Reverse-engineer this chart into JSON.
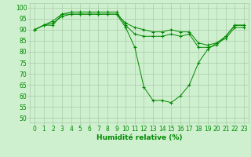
{
  "xlabel": "Humidité relative (%)",
  "background_color": "#cff0cf",
  "grid_color": "#aaccaa",
  "line_color": "#008800",
  "marker": "+",
  "xlim": [
    -0.5,
    23.5
  ],
  "ylim": [
    48,
    102
  ],
  "yticks": [
    50,
    55,
    60,
    65,
    70,
    75,
    80,
    85,
    90,
    95,
    100
  ],
  "xticks": [
    0,
    1,
    2,
    3,
    4,
    5,
    6,
    7,
    8,
    9,
    10,
    11,
    12,
    13,
    14,
    15,
    16,
    17,
    18,
    19,
    20,
    21,
    22,
    23
  ],
  "series": [
    [
      90,
      92,
      92,
      97,
      97,
      97,
      97,
      97,
      97,
      97,
      91,
      82,
      64,
      58,
      58,
      57,
      60,
      65,
      75,
      81,
      84,
      86,
      91,
      91
    ],
    [
      90,
      92,
      94,
      97,
      98,
      98,
      98,
      98,
      98,
      98,
      92,
      88,
      87,
      87,
      87,
      88,
      87,
      88,
      82,
      82,
      83,
      87,
      92,
      92
    ],
    [
      90,
      92,
      93,
      96,
      97,
      97,
      97,
      97,
      97,
      97,
      93,
      91,
      90,
      89,
      89,
      90,
      89,
      89,
      84,
      83,
      84,
      87,
      92,
      92
    ]
  ],
  "tick_fontsize": 5.5,
  "xlabel_fontsize": 6.5
}
